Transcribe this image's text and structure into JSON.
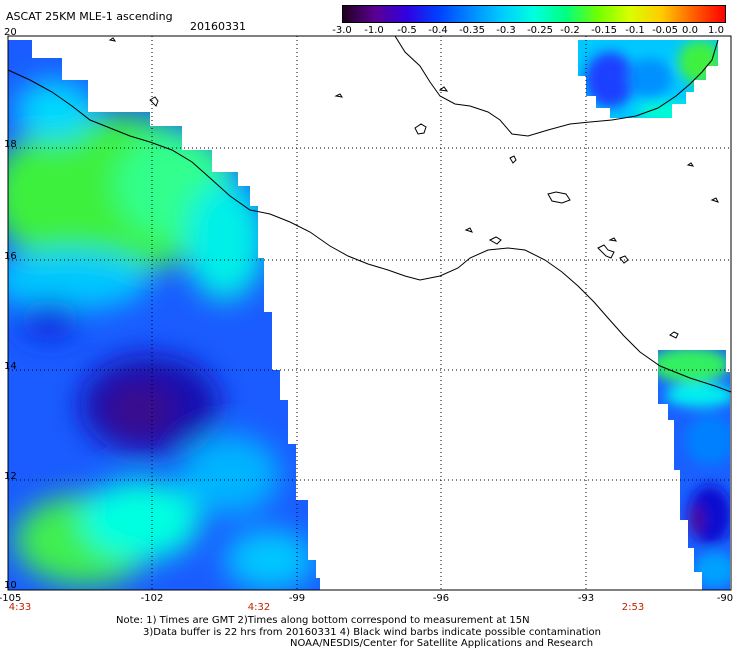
{
  "header": {
    "title": "ASCAT 25KM MLE-1 ascending",
    "date": "20160331"
  },
  "colorbar": {
    "labels": [
      "-3.0",
      "-1.0",
      "-0.5",
      "-0.4",
      "-0.35",
      "-0.3",
      "-0.25",
      "-0.2",
      "-0.15",
      "-0.1",
      "-0.05",
      "0.0",
      "1.0"
    ],
    "colors": [
      "#200020",
      "#5a0090",
      "#3000e0",
      "#0040ff",
      "#0088ff",
      "#00ccff",
      "#00ffe0",
      "#00ff80",
      "#70ff00",
      "#d8ff00",
      "#ffcc00",
      "#ff6000",
      "#ff0000"
    ]
  },
  "axes": {
    "lat_labels": [
      "20",
      "18",
      "16",
      "14",
      "12",
      "10"
    ],
    "lon_labels": [
      "-105",
      "-102",
      "-99",
      "-96",
      "-93",
      "-90"
    ],
    "times": [
      "4:33",
      "4:32",
      "2:53"
    ]
  },
  "notes": {
    "line1": "Note: 1) Times are GMT 2)Times along bottom correspond to measurement at 15N",
    "line2": "3)Data buffer is 22 hrs from 20160331 4) Black wind barbs indicate possible contamination",
    "line3": "NOAA/NESDIS/Center for Satellite Applications and Research"
  }
}
